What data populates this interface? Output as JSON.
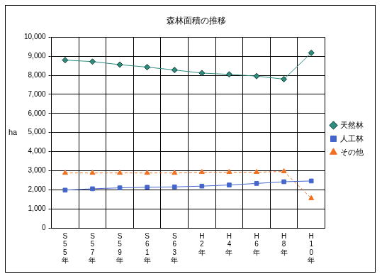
{
  "chart_data": {
    "type": "line",
    "title": "森林面積の推移",
    "y_label": "ha",
    "categories": [
      "S55年",
      "S57年",
      "S59年",
      "S61年",
      "S63年",
      "H2年",
      "H4年",
      "H6年",
      "H8年",
      "H10年"
    ],
    "series": [
      {
        "name": "天然林",
        "color": "#2f8c80",
        "marker": "diamond",
        "line_style": "solid",
        "values": [
          8800,
          8720,
          8560,
          8430,
          8280,
          8120,
          8050,
          7960,
          7800,
          9180
        ]
      },
      {
        "name": "人工林",
        "color": "#4466cc",
        "marker": "square",
        "line_style": "solid",
        "values": [
          1980,
          2050,
          2100,
          2130,
          2150,
          2190,
          2250,
          2330,
          2420,
          2460
        ]
      },
      {
        "name": "その他",
        "color": "#f07020",
        "marker": "triangle",
        "line_style": "dashed",
        "values": [
          2880,
          2880,
          2880,
          2880,
          2880,
          2920,
          2920,
          2920,
          2960,
          1550
        ]
      }
    ],
    "ylim": [
      0,
      10000
    ],
    "yticks": [
      0,
      {
        "value": 1000,
        "label": "1,000"
      },
      {
        "value": 2000,
        "label": "2,000"
      },
      {
        "value": 3000,
        "label": "3,000"
      },
      {
        "value": 4000,
        "label": "4,000"
      },
      {
        "value": 5000,
        "label": "5,000"
      },
      {
        "value": 6000,
        "label": "6,000"
      },
      {
        "value": 7000,
        "label": "7,000"
      },
      {
        "value": 8000,
        "label": "8,000"
      },
      {
        "value": 9000,
        "label": "9,000"
      },
      {
        "value": 10000,
        "label": "10,000"
      }
    ],
    "grid": true,
    "legend": "right"
  }
}
